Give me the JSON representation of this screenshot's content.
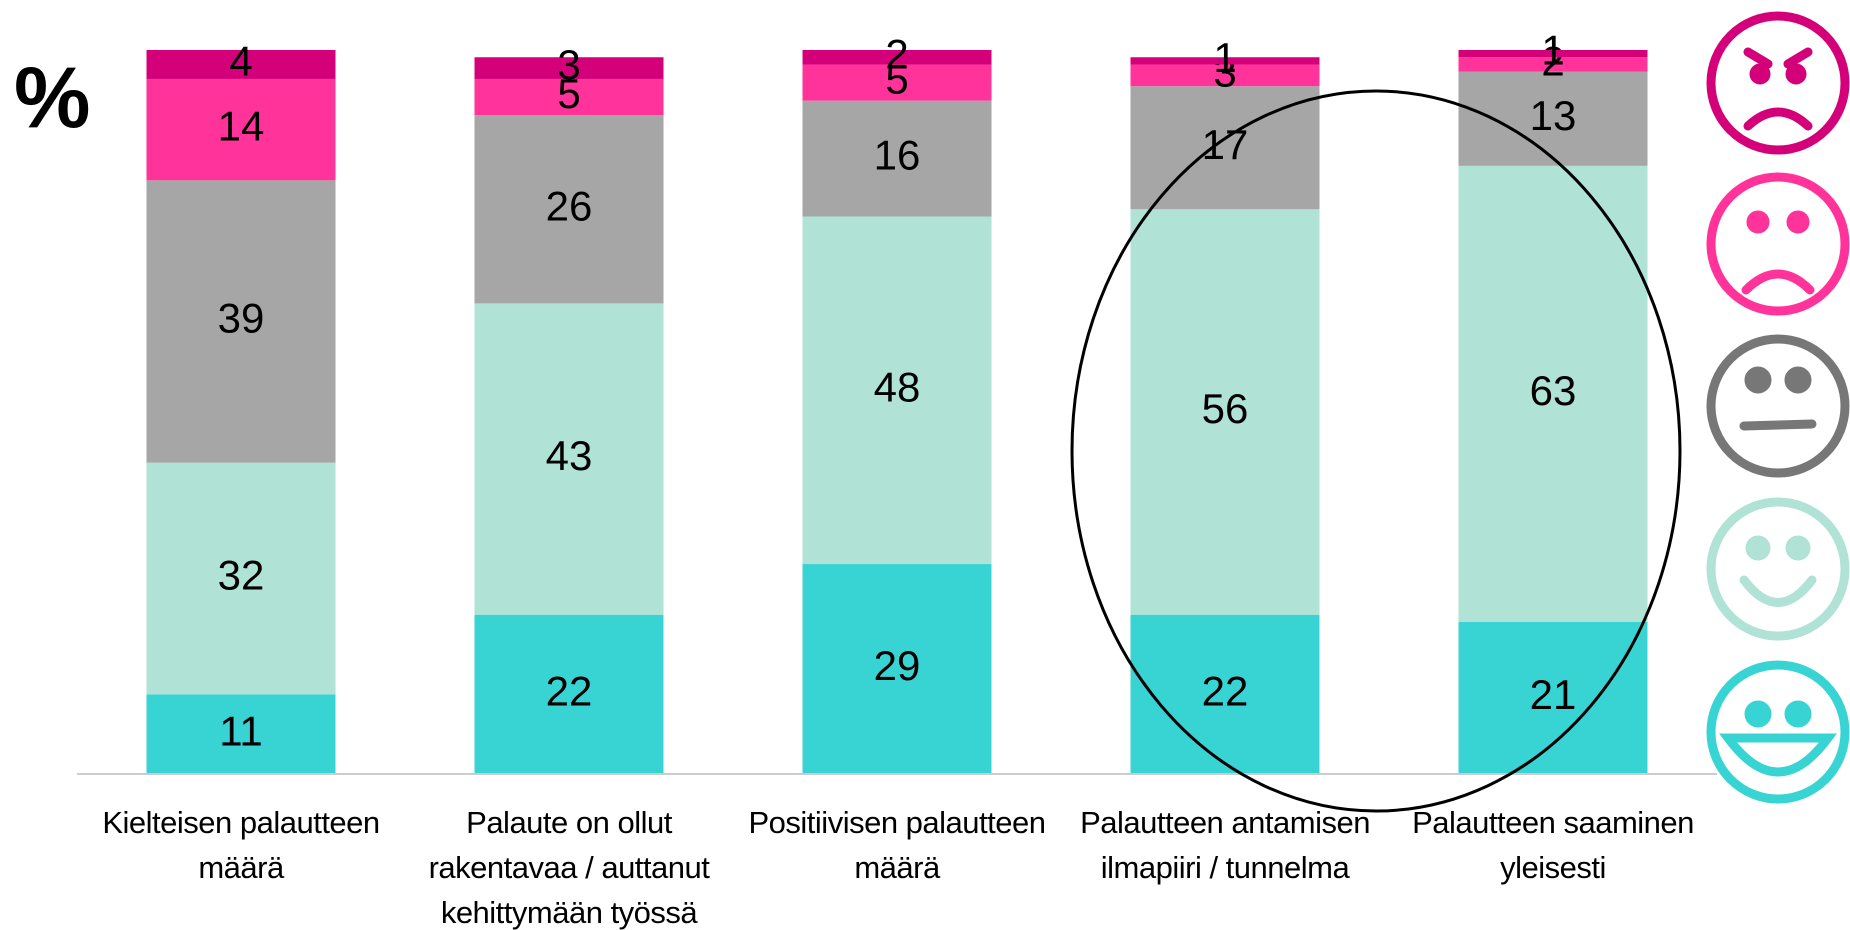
{
  "chart_data": {
    "type": "stacked_bar",
    "ylabel": "%",
    "categories": [
      "Kielteisen palautteen\nmäärä",
      "Palaute on ollut\nrakentavaa / auttanut\nkehittymään työssä",
      "Positiivisen palautteen\nmäärä",
      "Palautteen antamisen\nilmapiiri / tunnelma",
      "Palautteen saaminen\nyleisesti"
    ],
    "series": [
      {
        "color": "#38d3d3",
        "values": [
          11,
          22,
          29,
          22,
          21
        ]
      },
      {
        "color": "#b0e2d6",
        "values": [
          32,
          43,
          48,
          56,
          63
        ]
      },
      {
        "color": "#a6a6a6",
        "values": [
          39,
          26,
          16,
          17,
          13
        ]
      },
      {
        "color": "#ff3399",
        "values": [
          14,
          5,
          5,
          3,
          2
        ]
      },
      {
        "color": "#d4007a",
        "values": [
          4,
          3,
          2,
          1,
          1
        ]
      }
    ],
    "ylim": [
      0,
      100
    ]
  }
}
